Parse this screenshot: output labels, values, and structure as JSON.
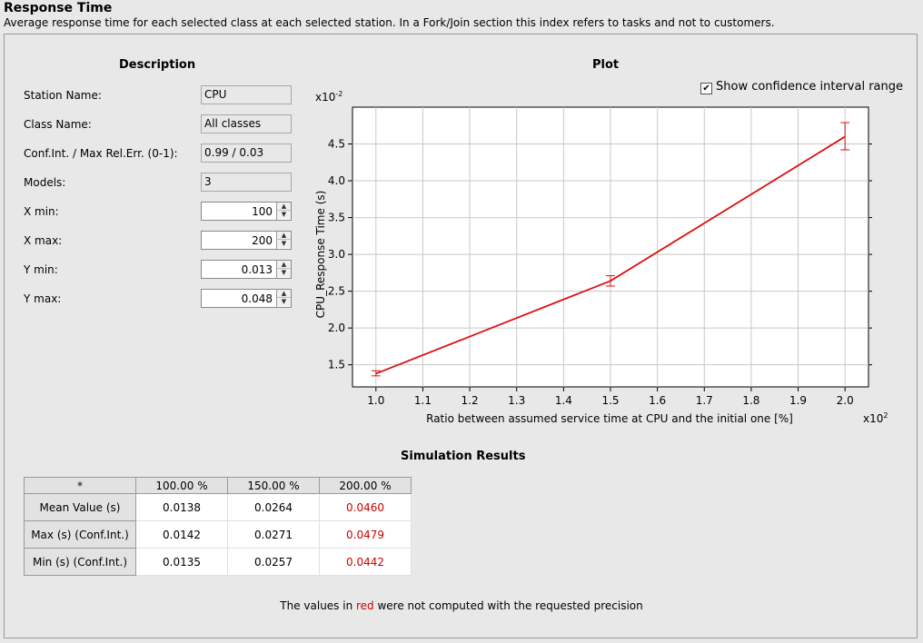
{
  "header": {
    "title": "Response Time",
    "description": "Average response time for each selected class at each selected station. In a Fork/Join section this index refers to tasks and not to customers."
  },
  "description_panel": {
    "title": "Description",
    "station_name_label": "Station Name:",
    "station_name_value": "CPU",
    "class_name_label": "Class Name:",
    "class_name_value": "All classes",
    "conf_int_label": "Conf.Int. / Max Rel.Err. (0-1):",
    "conf_int_value": "0.99 / 0.03",
    "models_label": "Models:",
    "models_value": "3",
    "xmin_label": "X min:",
    "xmin_value": "100",
    "xmax_label": "X max:",
    "xmax_value": "200",
    "ymin_label": "Y min:",
    "ymin_value": "0.013",
    "ymax_label": "Y max:",
    "ymax_value": "0.048"
  },
  "plot_panel": {
    "title": "Plot",
    "show_ci_label": "Show confidence interval range",
    "show_ci_checked": true
  },
  "chart_data": {
    "type": "line",
    "xlabel": "Ratio between assumed service time at CPU and the initial one [%]",
    "ylabel": "CPU_Response Time (s)",
    "x_multiplier_label": "x10",
    "x_multiplier_exp": "2",
    "y_multiplier_label": "x10",
    "y_multiplier_exp": "-2",
    "x_ticks": [
      1.0,
      1.1,
      1.2,
      1.3,
      1.4,
      1.5,
      1.6,
      1.7,
      1.8,
      1.9,
      2.0
    ],
    "x_tick_labels": [
      "1.0",
      "1.1",
      "1.2",
      "1.3",
      "1.4",
      "1.5",
      "1.6",
      "1.7",
      "1.8",
      "1.9",
      "2.0"
    ],
    "y_ticks": [
      1.5,
      2.0,
      2.5,
      3.0,
      3.5,
      4.0,
      4.5
    ],
    "y_tick_labels": [
      "1.5",
      "2.0",
      "2.5",
      "3.0",
      "3.5",
      "4.0",
      "4.5"
    ],
    "xlim": [
      0.95,
      2.05
    ],
    "ylim": [
      1.2,
      5.0
    ],
    "grid": true,
    "color": "#dd1111",
    "series": [
      {
        "x": [
          1.0,
          1.5,
          2.0
        ],
        "y": [
          1.38,
          2.64,
          4.6
        ],
        "y_low": [
          1.35,
          2.57,
          4.42
        ],
        "y_high": [
          1.42,
          2.71,
          4.79
        ]
      }
    ]
  },
  "results": {
    "title": "Simulation Results",
    "corner": "*",
    "columns": [
      "100.00 %",
      "150.00 %",
      "200.00 %"
    ],
    "rows": [
      {
        "label": "Mean Value (s)",
        "values": [
          "0.0138",
          "0.0264",
          "0.0460"
        ]
      },
      {
        "label": "Max (s) (Conf.Int.)",
        "values": [
          "0.0142",
          "0.0271",
          "0.0479"
        ]
      },
      {
        "label": "Min (s) (Conf.Int.)",
        "values": [
          "0.0135",
          "0.0257",
          "0.0442"
        ]
      }
    ]
  },
  "footnote": {
    "before": "The values in ",
    "red_word": "red",
    "after": " were not computed with the requested precision"
  }
}
